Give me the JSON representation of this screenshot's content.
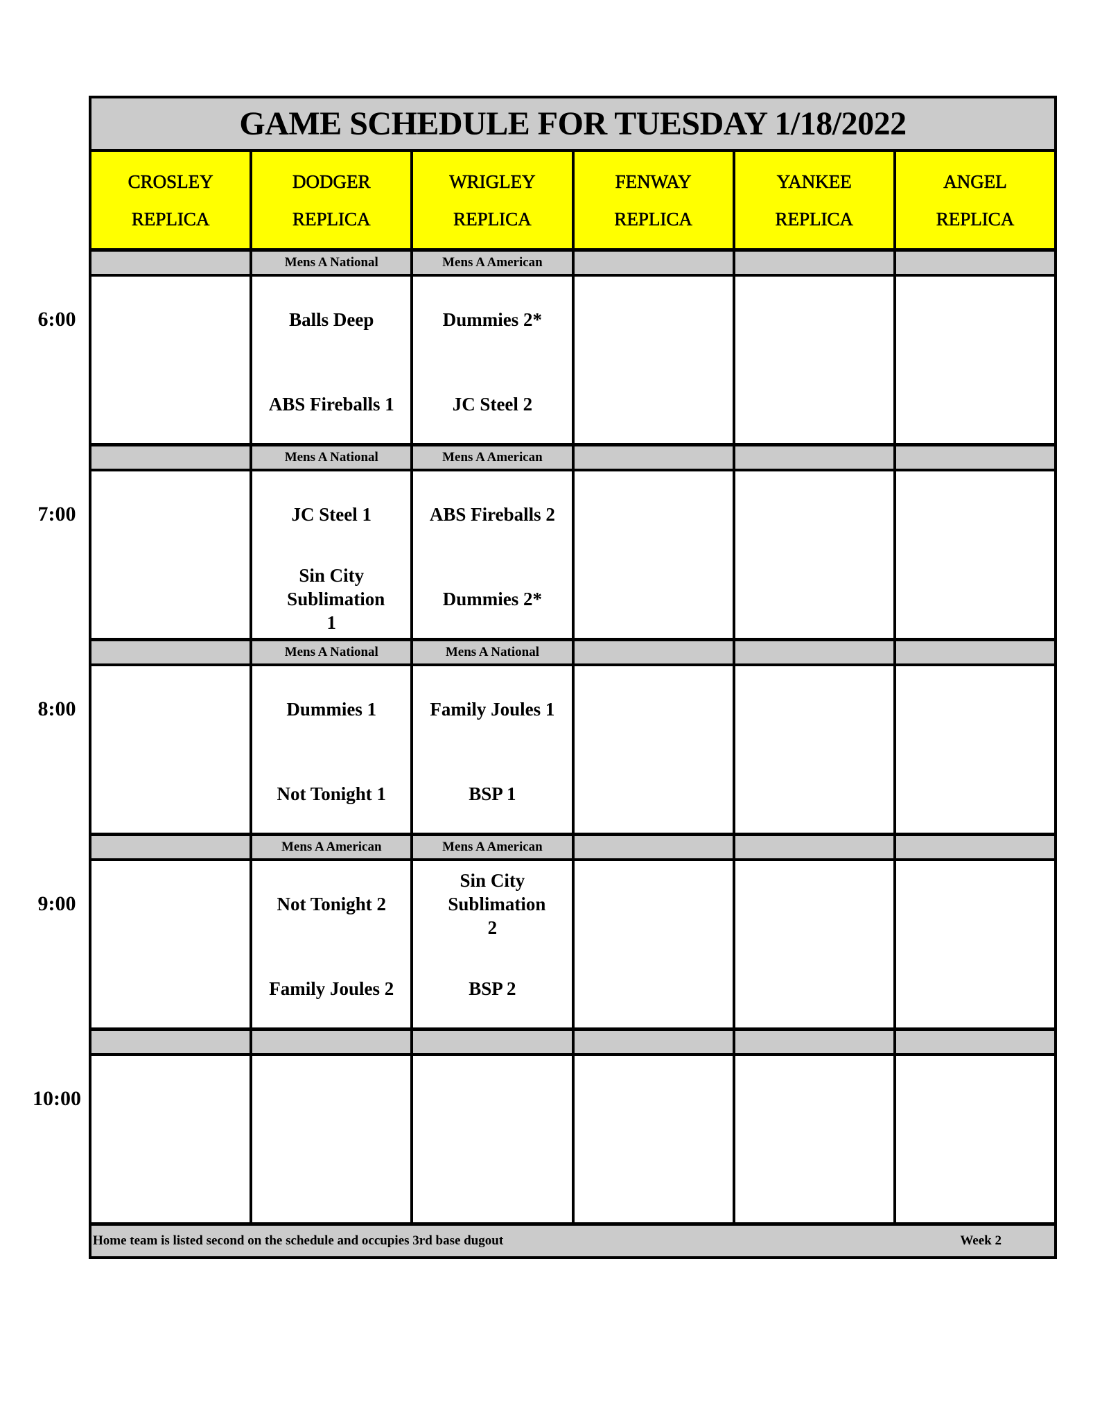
{
  "title": "GAME SCHEDULE FOR TUESDAY 1/18/2022",
  "fields": [
    {
      "name": "CROSLEY",
      "sub": "REPLICA"
    },
    {
      "name": "DODGER",
      "sub": "REPLICA"
    },
    {
      "name": "WRIGLEY",
      "sub": "REPLICA"
    },
    {
      "name": "FENWAY",
      "sub": "REPLICA"
    },
    {
      "name": "YANKEE",
      "sub": "REPLICA"
    },
    {
      "name": "ANGEL",
      "sub": "REPLICA"
    }
  ],
  "slots": [
    {
      "time": "6:00",
      "divisions": [
        "",
        "Mens A National",
        "Mens A American",
        "",
        "",
        ""
      ],
      "games": [
        [],
        [
          "Balls Deep",
          "ABS Fireballs 1"
        ],
        [
          "Dummies 2*",
          "JC Steel 2"
        ],
        [],
        [],
        []
      ]
    },
    {
      "time": "7:00",
      "divisions": [
        "",
        "Mens A National",
        "Mens A American",
        "",
        "",
        ""
      ],
      "games": [
        [],
        [
          "JC Steel 1",
          "Sin City Sublimation 1"
        ],
        [
          "ABS Fireballs 2",
          "Dummies 2*"
        ],
        [],
        [],
        []
      ]
    },
    {
      "time": "8:00",
      "divisions": [
        "",
        "Mens A National",
        "Mens A National",
        "",
        "",
        ""
      ],
      "games": [
        [],
        [
          "Dummies 1",
          "Not Tonight 1"
        ],
        [
          "Family Joules 1",
          "BSP 1"
        ],
        [],
        [],
        []
      ]
    },
    {
      "time": "9:00",
      "divisions": [
        "",
        "Mens A American",
        "Mens A American",
        "",
        "",
        ""
      ],
      "games": [
        [],
        [
          "Not Tonight 2",
          "Family Joules 2"
        ],
        [
          "Sin City Sublimation 2",
          "BSP 2"
        ],
        [],
        [],
        []
      ]
    },
    {
      "time": "10:00",
      "divisions": [
        "",
        "",
        "",
        "",
        "",
        ""
      ],
      "games": [
        [],
        [],
        [],
        [],
        [],
        []
      ]
    }
  ],
  "footer": {
    "note": "Home team is listed second on the schedule and occupies 3rd base dugout",
    "week": "Week 2"
  },
  "colors": {
    "header_bg": "#ffff00",
    "band_bg": "#cbcbcb",
    "border": "#000000"
  }
}
